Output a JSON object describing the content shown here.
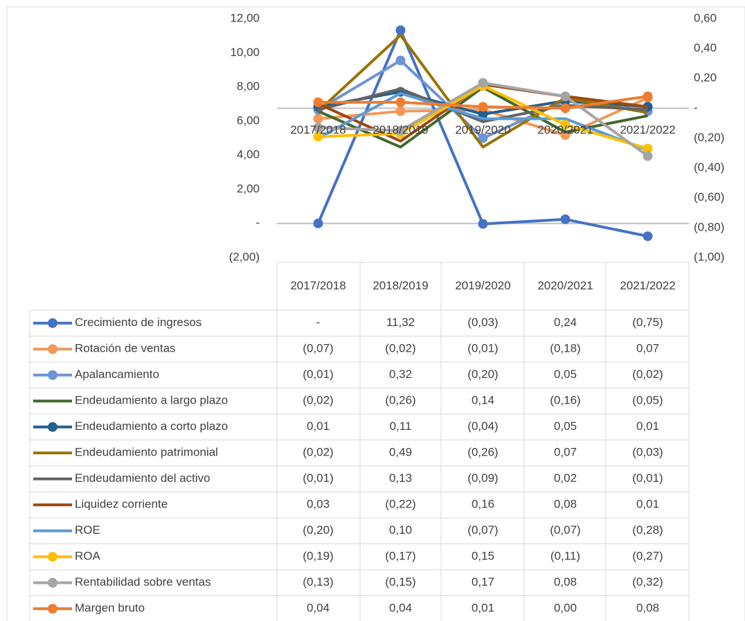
{
  "chart_data": {
    "type": "line",
    "categories": [
      "2017/2018",
      "2018/2019",
      "2019/2020",
      "2020/2021",
      "2021/2022"
    ],
    "ylim": [
      -2,
      12
    ],
    "yticks": [
      {
        "value": -2,
        "label": "(2,00)"
      },
      {
        "value": 0,
        "label": "-"
      },
      {
        "value": 2,
        "label": "2,00"
      },
      {
        "value": 4,
        "label": "4,00"
      },
      {
        "value": 6,
        "label": "6,00"
      },
      {
        "value": 8,
        "label": "8,00"
      },
      {
        "value": 10,
        "label": "10,00"
      },
      {
        "value": 12,
        "label": "12,00"
      }
    ],
    "y2lim": [
      -1,
      0.6
    ],
    "y2ticks": [
      {
        "value": -1,
        "label": "(1,00)"
      },
      {
        "value": -0.8,
        "label": "(0,80)"
      },
      {
        "value": -0.6,
        "label": "(0,60)"
      },
      {
        "value": -0.4,
        "label": "(0,40)"
      },
      {
        "value": -0.2,
        "label": "(0,20)"
      },
      {
        "value": 0,
        "label": "-"
      },
      {
        "value": 0.2,
        "label": "0,20"
      },
      {
        "value": 0.4,
        "label": "0,40"
      },
      {
        "value": 0.6,
        "label": "0,60"
      }
    ],
    "series": [
      {
        "name": "Crecimiento de ingresos",
        "color": "#4472c4",
        "marker": true,
        "values": [
          0,
          11.32,
          -0.03,
          0.24,
          -0.75
        ],
        "value_labels": [
          "-",
          "11,32",
          "(0,03)",
          "0,24",
          "(0,75)"
        ]
      },
      {
        "name": "Rotación de ventas",
        "color": "#f4975a",
        "marker": true,
        "axis": "y2",
        "values": [
          -0.07,
          -0.02,
          -0.01,
          -0.18,
          0.07
        ],
        "value_labels": [
          "(0,07)",
          "(0,02)",
          "(0,01)",
          "(0,18)",
          "0,07"
        ]
      },
      {
        "name": "Apalancamiento",
        "color": "#6f94d6",
        "marker": true,
        "axis": "y2",
        "values": [
          -0.01,
          0.32,
          -0.2,
          0.05,
          -0.02
        ],
        "value_labels": [
          "(0,01)",
          "0,32",
          "(0,20)",
          "0,05",
          "(0,02)"
        ]
      },
      {
        "name": "Endeudamiento a largo plazo",
        "color": "#43682b",
        "marker": false,
        "axis": "y2",
        "values": [
          -0.02,
          -0.26,
          0.14,
          -0.16,
          -0.05
        ],
        "value_labels": [
          "(0,02)",
          "(0,26)",
          "0,14",
          "(0,16)",
          "(0,05)"
        ]
      },
      {
        "name": "Endeudamiento a corto plazo",
        "color": "#255e91",
        "marker": true,
        "axis": "y2",
        "values": [
          0.01,
          0.11,
          -0.04,
          0.05,
          0.01
        ],
        "value_labels": [
          "0,01",
          "0,11",
          "(0,04)",
          "0,05",
          "0,01"
        ]
      },
      {
        "name": "Endeudamiento patrimonial",
        "color": "#997300",
        "marker": false,
        "axis": "y2",
        "values": [
          -0.02,
          0.49,
          -0.26,
          0.07,
          -0.03
        ],
        "value_labels": [
          "(0,02)",
          "0,49",
          "(0,26)",
          "0,07",
          "(0,03)"
        ]
      },
      {
        "name": "Endeudamiento del activo",
        "color": "#636363",
        "marker": false,
        "axis": "y2",
        "values": [
          -0.01,
          0.13,
          -0.09,
          0.02,
          -0.01
        ],
        "value_labels": [
          "(0,01)",
          "0,13",
          "(0,09)",
          "0,02",
          "(0,01)"
        ]
      },
      {
        "name": "Liquidez corriente",
        "color": "#9e480e",
        "marker": false,
        "axis": "y2",
        "values": [
          0.03,
          -0.22,
          0.16,
          0.08,
          0.01
        ],
        "value_labels": [
          "0,03",
          "(0,22)",
          "0,16",
          "0,08",
          "0,01"
        ]
      },
      {
        "name": "ROE",
        "color": "#5b9bd5",
        "marker": false,
        "axis": "y2",
        "values": [
          -0.2,
          0.1,
          -0.07,
          -0.07,
          -0.28
        ],
        "value_labels": [
          "(0,20)",
          "0,10",
          "(0,07)",
          "(0,07)",
          "(0,28)"
        ]
      },
      {
        "name": "ROA",
        "color": "#ffc000",
        "marker": true,
        "axis": "y2",
        "values": [
          -0.19,
          -0.17,
          0.15,
          -0.11,
          -0.27
        ],
        "value_labels": [
          "(0,19)",
          "(0,17)",
          "0,15",
          "(0,11)",
          "(0,27)"
        ]
      },
      {
        "name": "Rentabilidad sobre ventas",
        "color": "#a5a5a5",
        "marker": true,
        "axis": "y2",
        "values": [
          -0.13,
          -0.15,
          0.17,
          0.08,
          -0.32
        ],
        "value_labels": [
          "(0,13)",
          "(0,15)",
          "0,17",
          "0,08",
          "(0,32)"
        ]
      },
      {
        "name": "Margen bruto",
        "color": "#ed7d31",
        "marker": true,
        "axis": "y2",
        "values": [
          0.04,
          0.04,
          0.01,
          0,
          0.08
        ],
        "value_labels": [
          "0,04",
          "0,04",
          "0,01",
          "0,00",
          "0,08"
        ]
      }
    ]
  }
}
